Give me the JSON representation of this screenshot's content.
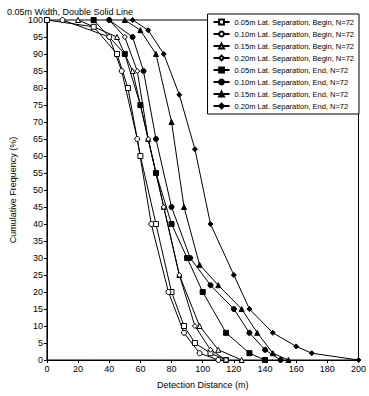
{
  "chart_data": {
    "type": "line",
    "title": "0.05m Width, Double Solid Line",
    "x_label": "Detection Distance (m)",
    "y_label": "Cumulative Frequency (%)",
    "xlim": [
      0,
      200
    ],
    "xticks": [
      0,
      20,
      40,
      60,
      80,
      100,
      120,
      140,
      160,
      180,
      200
    ],
    "ylim": [
      0,
      100
    ],
    "yticks": [
      0,
      5,
      10,
      15,
      20,
      25,
      30,
      35,
      40,
      45,
      50,
      55,
      60,
      65,
      70,
      75,
      80,
      85,
      90,
      95,
      100
    ],
    "grid": false,
    "legend": "top-right",
    "series": [
      {
        "name": "0.05m Lat. Separation, Begin, N=72",
        "color": "#000000",
        "marker": "open square",
        "x": [
          0,
          30,
          45,
          52,
          60,
          70,
          80,
          88,
          95,
          105,
          115
        ],
        "values": [
          100,
          98,
          90,
          80,
          60,
          40,
          20,
          10,
          5,
          2,
          0
        ]
      },
      {
        "name": "0.10m Lat. Separation, Begin, N=72",
        "color": "#000000",
        "marker": "open circle",
        "x": [
          10,
          40,
          48,
          58,
          67,
          78,
          88,
          98,
          110
        ],
        "values": [
          100,
          95,
          85,
          65,
          40,
          20,
          8,
          2,
          0
        ]
      },
      {
        "name": "0.15m Lat. Separation, Begin, N=72",
        "color": "#000000",
        "marker": "open triangle",
        "x": [
          20,
          45,
          55,
          65,
          75,
          85,
          98,
          110,
          125
        ],
        "values": [
          100,
          95,
          85,
          65,
          45,
          25,
          10,
          3,
          0
        ]
      },
      {
        "name": "0.20m Lat. Separation, Begin, N=72",
        "color": "#000000",
        "marker": "open diamond",
        "x": [
          40,
          50,
          58,
          65,
          75,
          85,
          95,
          105,
          115
        ],
        "values": [
          100,
          95,
          85,
          65,
          45,
          25,
          10,
          3,
          0
        ]
      },
      {
        "name": "0.05m Lat. Separation, End, N=72",
        "color": "#000000",
        "marker": "filled square",
        "x": [
          30,
          50,
          60,
          70,
          80,
          90,
          100,
          115,
          130,
          140
        ],
        "values": [
          100,
          90,
          75,
          55,
          40,
          30,
          20,
          8,
          2,
          0
        ]
      },
      {
        "name": "0.10m Lat. Separation, End, N=72",
        "color": "#000000",
        "marker": "filled circle",
        "x": [
          40,
          55,
          62,
          70,
          80,
          92,
          105,
          120,
          130,
          140,
          150
        ],
        "values": [
          100,
          95,
          85,
          65,
          45,
          30,
          22,
          15,
          8,
          3,
          0
        ]
      },
      {
        "name": "0.15m Lat. Separation, End, N=72",
        "color": "#000000",
        "marker": "filled triangle",
        "x": [
          50,
          60,
          70,
          80,
          88,
          98,
          110,
          125,
          135,
          145,
          155
        ],
        "values": [
          100,
          97,
          90,
          70,
          45,
          28,
          22,
          15,
          8,
          2,
          0
        ]
      },
      {
        "name": "0.20m Lat. Separation, End, N=72",
        "color": "#000000",
        "marker": "filled diamond",
        "x": [
          55,
          65,
          75,
          85,
          95,
          105,
          120,
          130,
          145,
          160,
          170,
          200
        ],
        "values": [
          100,
          97,
          90,
          78,
          62,
          40,
          25,
          15,
          8,
          4,
          2,
          0
        ]
      }
    ]
  }
}
